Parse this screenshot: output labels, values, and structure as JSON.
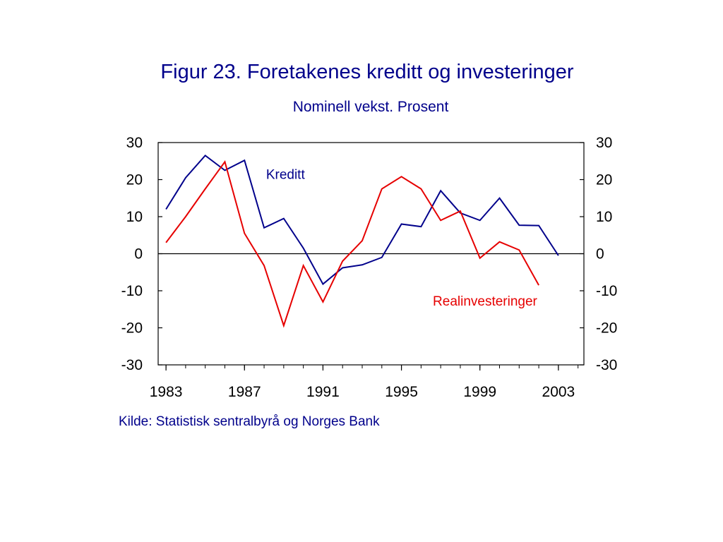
{
  "header": {
    "title": "Figur 23. Foretakenes kreditt og investeringer",
    "subtitle": "Nominell vekst. Prosent"
  },
  "footer": {
    "source": "Kilde: Statistisk sentralbyrå og Norges Bank"
  },
  "chart_data": {
    "type": "line",
    "title": "Figur 23. Foretakenes kreditt og investeringer",
    "subtitle": "Nominell vekst. Prosent",
    "xlabel": "",
    "ylabel": "",
    "xlim": [
      1982.6,
      2004.3
    ],
    "ylim": [
      -30,
      30
    ],
    "x_ticks": [
      "1983",
      "1987",
      "1991",
      "1995",
      "1999",
      "2003"
    ],
    "y_ticks": [
      "30",
      "20",
      "10",
      "0",
      "-10",
      "-20",
      "-30"
    ],
    "secondary_y_axis": true,
    "zero_line": true,
    "grid": false,
    "legend": "inline labels",
    "series": [
      {
        "name": "Kreditt",
        "color": "#00008b",
        "x": [
          1983,
          1984,
          1985,
          1986,
          1987,
          1988,
          1989,
          1990,
          1991,
          1992,
          1993,
          1994,
          1995,
          1996,
          1997,
          1998,
          1999,
          2000,
          2001,
          2002,
          2003
        ],
        "values": [
          12,
          20.5,
          26.5,
          22.5,
          25.2,
          7,
          9.5,
          1.5,
          -8.2,
          -3.8,
          -3,
          -1,
          8,
          7.3,
          17,
          11,
          9,
          15,
          7.7,
          7.6,
          -0.5
        ]
      },
      {
        "name": "Realinvesteringer",
        "color": "#e60000",
        "x": [
          1983,
          1984,
          1985,
          1986,
          1987,
          1988,
          1989,
          1990,
          1991,
          1992,
          1993,
          1994,
          1995,
          1996,
          1997,
          1998,
          1999,
          2000,
          2001,
          2002
        ],
        "values": [
          3,
          10,
          17.5,
          24.8,
          5.5,
          -3.2,
          -19.4,
          -3.2,
          -13,
          -2,
          3.5,
          17.5,
          20.8,
          17.5,
          9,
          11.5,
          -1.2,
          3.2,
          1,
          -8.5
        ]
      }
    ]
  }
}
